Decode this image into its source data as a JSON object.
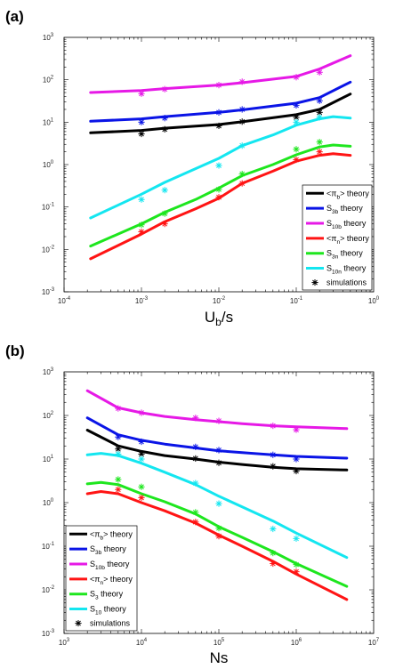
{
  "chart_data": [
    {
      "panel_label": "(a)",
      "type": "line",
      "xscale": "log",
      "yscale": "log",
      "xlabel_main": "U",
      "xlabel_sub": "b",
      "xlabel_rest": "/s",
      "xlim": [
        0.0001,
        1
      ],
      "ylim": [
        0.001,
        1000
      ],
      "x_ticks": [
        {
          "v": 0.0001,
          "base": "10",
          "exp": "-4"
        },
        {
          "v": 0.001,
          "base": "10",
          "exp": "-3"
        },
        {
          "v": 0.01,
          "base": "10",
          "exp": "-2"
        },
        {
          "v": 0.1,
          "base": "10",
          "exp": "-1"
        },
        {
          "v": 1,
          "base": "10",
          "exp": "0"
        }
      ],
      "y_ticks": [
        {
          "v": 0.001,
          "base": "10",
          "exp": "-3"
        },
        {
          "v": 0.01,
          "base": "10",
          "exp": "-2"
        },
        {
          "v": 0.1,
          "base": "10",
          "exp": "-1"
        },
        {
          "v": 1,
          "base": "10",
          "exp": "0"
        },
        {
          "v": 10,
          "base": "10",
          "exp": "1"
        },
        {
          "v": 100,
          "base": "10",
          "exp": "2"
        },
        {
          "v": 1000,
          "base": "10",
          "exp": "3"
        }
      ],
      "legend_position": "bottom-right",
      "series": [
        {
          "name": "<π_b> theory",
          "leg_main": "<π",
          "leg_sub": "b",
          "leg_rest": "> theory",
          "color": "#000000",
          "x": [
            0.00022,
            0.001,
            0.002,
            0.01,
            0.02,
            0.1,
            0.2,
            0.5
          ],
          "y": [
            5.6,
            6.4,
            7.2,
            8.8,
            10.2,
            15,
            20,
            46
          ]
        },
        {
          "name": "S_3b theory",
          "leg_main": "S",
          "leg_sub": "3b",
          "leg_rest": " theory",
          "color": "#0a14e6",
          "x": [
            0.00022,
            0.001,
            0.002,
            0.01,
            0.02,
            0.1,
            0.2,
            0.5
          ],
          "y": [
            10.5,
            12,
            13.5,
            17,
            19.5,
            28,
            38,
            88
          ]
        },
        {
          "name": "S_10b theory",
          "leg_main": "S",
          "leg_sub": "10b",
          "leg_rest": " theory",
          "color": "#e619e6",
          "x": [
            0.00022,
            0.001,
            0.002,
            0.01,
            0.02,
            0.1,
            0.2,
            0.5
          ],
          "y": [
            50,
            56,
            62,
            75,
            85,
            120,
            180,
            370
          ]
        },
        {
          "name": "<π_n> theory",
          "leg_main": "<π",
          "leg_sub": "n",
          "leg_rest": "> theory",
          "color": "#ff1414",
          "x": [
            0.00022,
            0.001,
            0.002,
            0.005,
            0.01,
            0.02,
            0.05,
            0.1,
            0.2,
            0.3,
            0.5
          ],
          "y": [
            0.006,
            0.023,
            0.045,
            0.09,
            0.16,
            0.36,
            0.7,
            1.2,
            1.65,
            1.8,
            1.65
          ]
        },
        {
          "name": "S_3n theory",
          "leg_main": "S",
          "leg_sub": "3n",
          "leg_rest": " theory",
          "color": "#1ee61e",
          "x": [
            0.00022,
            0.001,
            0.002,
            0.005,
            0.01,
            0.02,
            0.05,
            0.1,
            0.2,
            0.3,
            0.5
          ],
          "y": [
            0.012,
            0.04,
            0.075,
            0.15,
            0.28,
            0.55,
            1.0,
            1.7,
            2.6,
            2.9,
            2.7
          ]
        },
        {
          "name": "S_10n theory",
          "leg_main": "S",
          "leg_sub": "10n",
          "leg_rest": " theory",
          "color": "#14e6f0",
          "x": [
            0.00022,
            0.001,
            0.002,
            0.005,
            0.01,
            0.02,
            0.05,
            0.1,
            0.2,
            0.3,
            0.5
          ],
          "y": [
            0.055,
            0.2,
            0.38,
            0.8,
            1.4,
            2.8,
            5,
            8.5,
            12,
            13.5,
            12.5
          ]
        }
      ],
      "simulations": {
        "name": "simulations",
        "points": [
          {
            "x": 0.001,
            "y": 5.3,
            "color": "#000000"
          },
          {
            "x": 0.002,
            "y": 6.8,
            "color": "#000000"
          },
          {
            "x": 0.01,
            "y": 8.2,
            "color": "#000000"
          },
          {
            "x": 0.02,
            "y": 10.3,
            "color": "#000000"
          },
          {
            "x": 0.1,
            "y": 13,
            "color": "#000000"
          },
          {
            "x": 0.2,
            "y": 17,
            "color": "#000000"
          },
          {
            "x": 0.001,
            "y": 10,
            "color": "#0a14e6"
          },
          {
            "x": 0.002,
            "y": 12.5,
            "color": "#0a14e6"
          },
          {
            "x": 0.01,
            "y": 17,
            "color": "#0a14e6"
          },
          {
            "x": 0.02,
            "y": 20,
            "color": "#0a14e6"
          },
          {
            "x": 0.1,
            "y": 25,
            "color": "#0a14e6"
          },
          {
            "x": 0.2,
            "y": 32,
            "color": "#0a14e6"
          },
          {
            "x": 0.001,
            "y": 47,
            "color": "#e619e6"
          },
          {
            "x": 0.002,
            "y": 60,
            "color": "#e619e6"
          },
          {
            "x": 0.01,
            "y": 75,
            "color": "#e619e6"
          },
          {
            "x": 0.02,
            "y": 90,
            "color": "#e619e6"
          },
          {
            "x": 0.1,
            "y": 115,
            "color": "#e619e6"
          },
          {
            "x": 0.2,
            "y": 150,
            "color": "#e619e6"
          },
          {
            "x": 0.001,
            "y": 0.026,
            "color": "#ff1414"
          },
          {
            "x": 0.002,
            "y": 0.04,
            "color": "#ff1414"
          },
          {
            "x": 0.01,
            "y": 0.17,
            "color": "#ff1414"
          },
          {
            "x": 0.02,
            "y": 0.36,
            "color": "#ff1414"
          },
          {
            "x": 0.1,
            "y": 1.3,
            "color": "#ff1414"
          },
          {
            "x": 0.2,
            "y": 2.0,
            "color": "#ff1414"
          },
          {
            "x": 0.001,
            "y": 0.038,
            "color": "#1ee61e"
          },
          {
            "x": 0.002,
            "y": 0.07,
            "color": "#1ee61e"
          },
          {
            "x": 0.01,
            "y": 0.26,
            "color": "#1ee61e"
          },
          {
            "x": 0.02,
            "y": 0.6,
            "color": "#1ee61e"
          },
          {
            "x": 0.1,
            "y": 2.3,
            "color": "#1ee61e"
          },
          {
            "x": 0.2,
            "y": 3.4,
            "color": "#1ee61e"
          },
          {
            "x": 0.001,
            "y": 0.15,
            "color": "#14e6f0"
          },
          {
            "x": 0.002,
            "y": 0.25,
            "color": "#14e6f0"
          },
          {
            "x": 0.01,
            "y": 0.95,
            "color": "#14e6f0"
          },
          {
            "x": 0.02,
            "y": 2.8,
            "color": "#14e6f0"
          },
          {
            "x": 0.1,
            "y": 10,
            "color": "#14e6f0"
          },
          {
            "x": 0.2,
            "y": 13,
            "color": "#14e6f0"
          }
        ]
      }
    },
    {
      "panel_label": "(b)",
      "type": "line",
      "xscale": "log",
      "yscale": "log",
      "xlabel_main": "Ns",
      "xlabel_sub": "",
      "xlabel_rest": "",
      "xlim": [
        1000,
        10000000
      ],
      "ylim": [
        0.001,
        1000
      ],
      "x_ticks": [
        {
          "v": 1000,
          "base": "10",
          "exp": "3"
        },
        {
          "v": 10000,
          "base": "10",
          "exp": "4"
        },
        {
          "v": 100000,
          "base": "10",
          "exp": "5"
        },
        {
          "v": 1000000,
          "base": "10",
          "exp": "6"
        },
        {
          "v": 10000000,
          "base": "10",
          "exp": "7"
        }
      ],
      "y_ticks": [
        {
          "v": 0.001,
          "base": "10",
          "exp": "-3"
        },
        {
          "v": 0.01,
          "base": "10",
          "exp": "-2"
        },
        {
          "v": 0.1,
          "base": "10",
          "exp": "-1"
        },
        {
          "v": 1,
          "base": "10",
          "exp": "0"
        },
        {
          "v": 10,
          "base": "10",
          "exp": "1"
        },
        {
          "v": 100,
          "base": "10",
          "exp": "2"
        },
        {
          "v": 1000,
          "base": "10",
          "exp": "3"
        }
      ],
      "legend_position": "bottom-left",
      "series": [
        {
          "name": "<π_b> theory",
          "leg_main": "<π",
          "leg_sub": "b",
          "leg_rest": "> theory",
          "color": "#000000",
          "x": [
            2000,
            5000,
            10000,
            20000,
            50000,
            100000,
            200000,
            500000,
            1000000,
            4500000
          ],
          "y": [
            46,
            20,
            15,
            12,
            10,
            8.5,
            7.5,
            6.5,
            6.0,
            5.6
          ]
        },
        {
          "name": "S_3b theory",
          "leg_main": "S",
          "leg_sub": "3b",
          "leg_rest": " theory",
          "color": "#0a14e6",
          "x": [
            2000,
            5000,
            10000,
            20000,
            50000,
            100000,
            200000,
            500000,
            1000000,
            4500000
          ],
          "y": [
            88,
            36,
            27,
            22,
            18,
            15.5,
            14,
            12.5,
            11.5,
            10.5
          ]
        },
        {
          "name": "S_10b theory",
          "leg_main": "S",
          "leg_sub": "10b",
          "leg_rest": " theory",
          "color": "#e619e6",
          "x": [
            2000,
            5000,
            10000,
            20000,
            50000,
            100000,
            200000,
            500000,
            1000000,
            4500000
          ],
          "y": [
            370,
            150,
            115,
            95,
            80,
            72,
            65,
            58,
            55,
            50
          ]
        },
        {
          "name": "<π_n> theory",
          "leg_main": "<π",
          "leg_sub": "n",
          "leg_rest": "> theory",
          "color": "#ff1414",
          "x": [
            2000,
            3000,
            5000,
            10000,
            20000,
            50000,
            100000,
            200000,
            500000,
            1000000,
            4500000
          ],
          "y": [
            1.6,
            1.8,
            1.6,
            1.0,
            0.65,
            0.34,
            0.18,
            0.1,
            0.045,
            0.023,
            0.006
          ]
        },
        {
          "name": "S_3 theory",
          "leg_main": "S",
          "leg_sub": "3",
          "leg_rest": " theory",
          "color": "#1ee61e",
          "x": [
            2000,
            3000,
            5000,
            10000,
            20000,
            50000,
            100000,
            200000,
            500000,
            1000000,
            4500000
          ],
          "y": [
            2.7,
            2.9,
            2.6,
            1.6,
            1.05,
            0.55,
            0.28,
            0.16,
            0.075,
            0.04,
            0.012
          ]
        },
        {
          "name": "S_10 theory",
          "leg_main": "S",
          "leg_sub": "10",
          "leg_rest": " theory",
          "color": "#14e6f0",
          "x": [
            2000,
            3000,
            5000,
            10000,
            20000,
            50000,
            100000,
            200000,
            500000,
            1000000,
            4500000
          ],
          "y": [
            12.5,
            13.5,
            12,
            8,
            5,
            2.6,
            1.4,
            0.8,
            0.38,
            0.2,
            0.055
          ]
        }
      ],
      "simulations": {
        "name": "simulations",
        "points": [
          {
            "x": 5000,
            "y": 17,
            "color": "#000000"
          },
          {
            "x": 10000,
            "y": 13,
            "color": "#000000"
          },
          {
            "x": 50000,
            "y": 10.3,
            "color": "#000000"
          },
          {
            "x": 100000,
            "y": 8.2,
            "color": "#000000"
          },
          {
            "x": 500000,
            "y": 6.8,
            "color": "#000000"
          },
          {
            "x": 1000000,
            "y": 5.3,
            "color": "#000000"
          },
          {
            "x": 5000,
            "y": 32,
            "color": "#0a14e6"
          },
          {
            "x": 10000,
            "y": 25,
            "color": "#0a14e6"
          },
          {
            "x": 50000,
            "y": 19,
            "color": "#0a14e6"
          },
          {
            "x": 100000,
            "y": 16,
            "color": "#0a14e6"
          },
          {
            "x": 500000,
            "y": 12.5,
            "color": "#0a14e6"
          },
          {
            "x": 1000000,
            "y": 10,
            "color": "#0a14e6"
          },
          {
            "x": 5000,
            "y": 145,
            "color": "#e619e6"
          },
          {
            "x": 10000,
            "y": 115,
            "color": "#e619e6"
          },
          {
            "x": 50000,
            "y": 88,
            "color": "#e619e6"
          },
          {
            "x": 100000,
            "y": 75,
            "color": "#e619e6"
          },
          {
            "x": 500000,
            "y": 58,
            "color": "#e619e6"
          },
          {
            "x": 1000000,
            "y": 47,
            "color": "#e619e6"
          },
          {
            "x": 5000,
            "y": 2.0,
            "color": "#ff1414"
          },
          {
            "x": 10000,
            "y": 1.3,
            "color": "#ff1414"
          },
          {
            "x": 50000,
            "y": 0.36,
            "color": "#ff1414"
          },
          {
            "x": 100000,
            "y": 0.17,
            "color": "#ff1414"
          },
          {
            "x": 500000,
            "y": 0.04,
            "color": "#ff1414"
          },
          {
            "x": 1000000,
            "y": 0.026,
            "color": "#ff1414"
          },
          {
            "x": 5000,
            "y": 3.4,
            "color": "#1ee61e"
          },
          {
            "x": 10000,
            "y": 2.3,
            "color": "#1ee61e"
          },
          {
            "x": 50000,
            "y": 0.6,
            "color": "#1ee61e"
          },
          {
            "x": 100000,
            "y": 0.26,
            "color": "#1ee61e"
          },
          {
            "x": 500000,
            "y": 0.07,
            "color": "#1ee61e"
          },
          {
            "x": 1000000,
            "y": 0.038,
            "color": "#1ee61e"
          },
          {
            "x": 5000,
            "y": 13,
            "color": "#14e6f0"
          },
          {
            "x": 10000,
            "y": 10,
            "color": "#14e6f0"
          },
          {
            "x": 50000,
            "y": 2.8,
            "color": "#14e6f0"
          },
          {
            "x": 100000,
            "y": 0.95,
            "color": "#14e6f0"
          },
          {
            "x": 500000,
            "y": 0.25,
            "color": "#14e6f0"
          },
          {
            "x": 1000000,
            "y": 0.15,
            "color": "#14e6f0"
          }
        ]
      }
    }
  ]
}
